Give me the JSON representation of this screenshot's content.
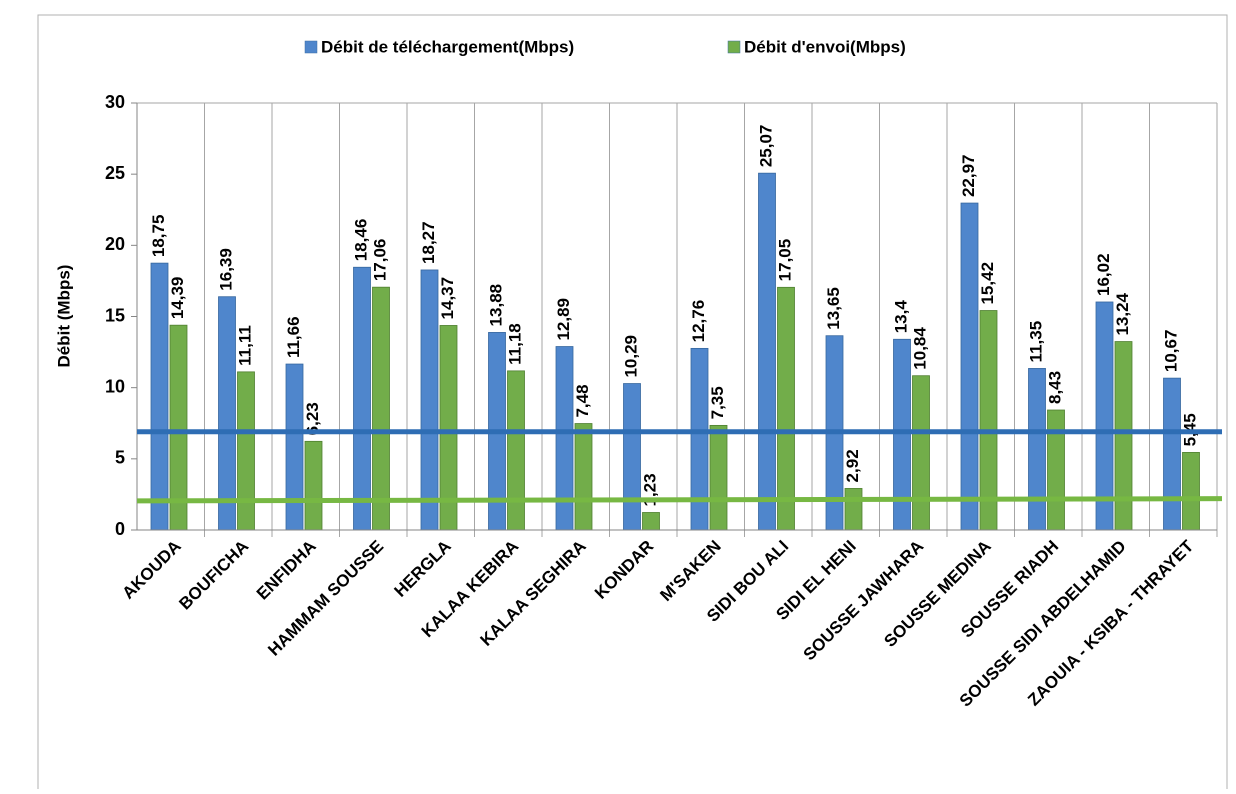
{
  "chart_data": {
    "type": "bar",
    "y_label": "Débit (Mbps)",
    "categories": [
      "AKOUDA",
      "BOUFICHA",
      "ENFIDHA",
      "HAMMAM SOUSSE",
      "HERGLA",
      "KALAA KEBIRA",
      "KALAA SEGHIRA",
      "KONDAR",
      "M'SAKEN",
      "SIDI BOU ALI",
      "SIDI EL HENI",
      "SOUSSE JAWHARA",
      "SOUSSE MEDINA",
      "SOUSSE RIADH",
      "SOUSSE SIDI ABDELHAMID",
      "ZAOUIA - KSIBA - THRAYET"
    ],
    "series": [
      {
        "name": "Débit de téléchargement(Mbps)",
        "color": "#4f86cc",
        "values": [
          18.75,
          16.39,
          11.66,
          18.46,
          18.27,
          13.88,
          12.89,
          10.29,
          12.76,
          25.07,
          13.65,
          13.4,
          22.97,
          11.35,
          16.02,
          10.67
        ],
        "value_labels": [
          "18,75",
          "16,39",
          "11,66",
          "18,46",
          "18,27",
          "13,88",
          "12,89",
          "10,29",
          "12,76",
          "25,07",
          "13,65",
          "13,4",
          "22,97",
          "11,35",
          "16,02",
          "10,67"
        ]
      },
      {
        "name": "Débit d'envoi(Mbps)",
        "color": "#72ad4a",
        "values": [
          14.39,
          11.11,
          6.23,
          17.06,
          14.37,
          11.18,
          7.48,
          1.23,
          7.35,
          17.05,
          2.92,
          10.84,
          15.42,
          8.43,
          13.24,
          5.45
        ],
        "value_labels": [
          "14,39",
          "11,11",
          "6,23",
          "17,06",
          "14,37",
          "11,18",
          "7,48",
          "1,23",
          "7,35",
          "17,05",
          "2,92",
          "10,84",
          "15,42",
          "8,43",
          "13,24",
          "5,45"
        ]
      }
    ],
    "reference_lines": [
      {
        "color": "#2e6db4",
        "values": [
          6.9,
          6.9
        ]
      },
      {
        "color": "#77b843",
        "values": [
          2.05,
          2.2
        ]
      }
    ],
    "ylim": [
      0,
      30
    ],
    "yticks": [
      0,
      5,
      10,
      15,
      20,
      25,
      30
    ],
    "grid": true,
    "legend": "top"
  }
}
